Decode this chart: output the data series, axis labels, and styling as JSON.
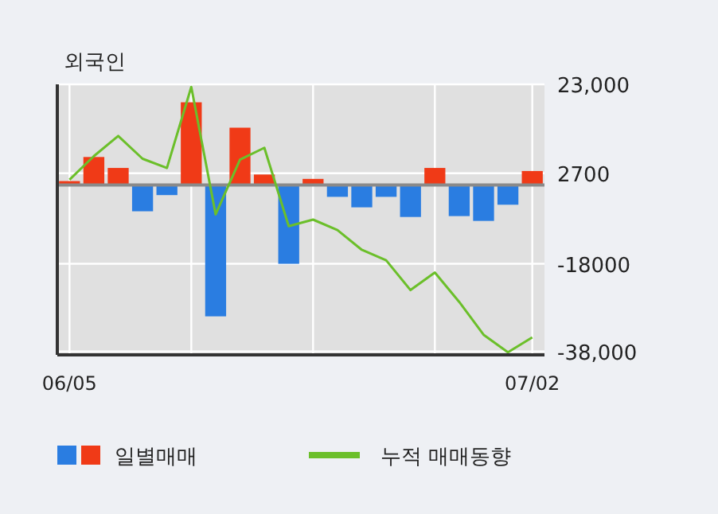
{
  "chart_data": {
    "type": "bar",
    "title": "외국인",
    "categories": [
      "06/05",
      null,
      null,
      null,
      null,
      null,
      null,
      null,
      null,
      null,
      null,
      null,
      null,
      null,
      null,
      null,
      null,
      null,
      null,
      "07/02"
    ],
    "series": [
      {
        "name": "일별매매",
        "colors": [
          "#f03a17",
          "#f03a17",
          "#f03a17",
          "#2a7de1",
          "#2a7de1",
          "#f03a17",
          "#2a7de1",
          "#f03a17",
          "#f03a17",
          "#2a7de1",
          "#f03a17",
          "#2a7de1",
          "#2a7de1",
          "#2a7de1",
          "#2a7de1",
          "#f03a17",
          "#2a7de1",
          "#2a7de1",
          "#2a7de1",
          "#f03a17"
        ],
        "values": [
          900,
          6400,
          3900,
          -6000,
          -2300,
          18900,
          -30000,
          13100,
          2400,
          -18000,
          1400,
          -2700,
          -5100,
          -2700,
          -7300,
          3900,
          -7100,
          -8200,
          -4500,
          3200
        ]
      },
      {
        "name": "누적 매매동향",
        "type": "line",
        "color": "#6bbf2a",
        "values": [
          1200,
          6600,
          11200,
          6000,
          3900,
          22400,
          -6700,
          5800,
          8500,
          -9400,
          -7900,
          -10300,
          -14800,
          -17200,
          -24000,
          -20000,
          -26700,
          -34200,
          -38200,
          -34800
        ]
      }
    ],
    "ylim": [
      -38800,
      23000
    ],
    "yticks": [
      {
        "value": 23000,
        "label": "23,000"
      },
      2700,
      -18000,
      {
        "value": -38000,
        "label": "-38,000"
      }
    ],
    "grid": true,
    "legend": "bottom"
  }
}
